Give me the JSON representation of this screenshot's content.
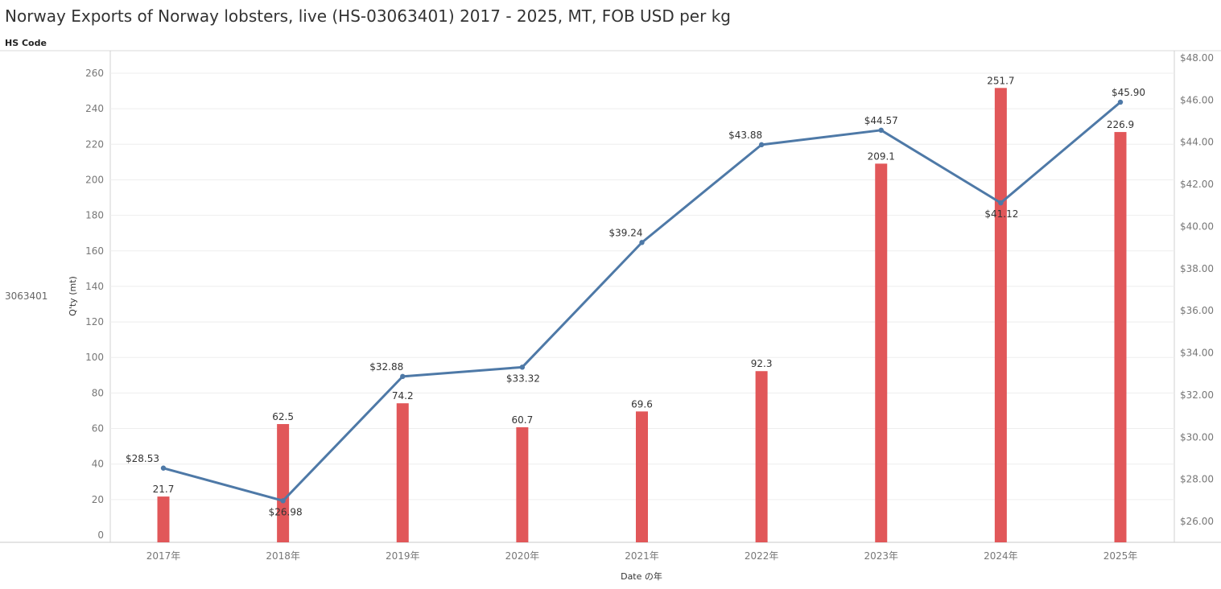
{
  "title": "Norway Exports of Norway lobsters, live (HS-03063401) 2017 - 2025, MT, FOB USD per kg",
  "row_header": "HS Code",
  "row_value": "3063401",
  "colors": {
    "bar": "#e15759",
    "line": "#4e79a7",
    "grid": "#eeeeee",
    "axis": "#d0d0d0"
  },
  "chart_data": {
    "type": "bar",
    "categories": [
      "2017年",
      "2018年",
      "2019年",
      "2020年",
      "2021年",
      "2022年",
      "2023年",
      "2024年",
      "2025年"
    ],
    "xlabel": "Date の年",
    "ylabel": "Q'ty (mt)",
    "ylim": [
      0,
      270
    ],
    "y_ticks": [
      0,
      20,
      40,
      60,
      80,
      100,
      120,
      140,
      160,
      180,
      200,
      220,
      240,
      260
    ],
    "y2lim": [
      25.2,
      48.0
    ],
    "y2_ticks": [
      26,
      28,
      30,
      32,
      34,
      36,
      38,
      40,
      42,
      44,
      46,
      48
    ],
    "y2_tick_prefix": "$",
    "grid": true,
    "series": [
      {
        "type": "bar",
        "axis": "left",
        "values": [
          21.7,
          62.5,
          74.2,
          60.7,
          69.6,
          92.3,
          209.1,
          251.7,
          226.9
        ],
        "labels": [
          "21.7",
          "62.5",
          "74.2",
          "60.7",
          "69.6",
          "92.3",
          "209.1",
          "251.7",
          "226.9"
        ]
      },
      {
        "type": "line",
        "axis": "right",
        "values": [
          28.53,
          26.98,
          32.88,
          33.32,
          39.24,
          43.88,
          44.57,
          41.12,
          45.9
        ],
        "labels": [
          "$28.53",
          "$26.98",
          "$32.88",
          "$33.32",
          "$39.24",
          "$43.88",
          "$44.57",
          "$41.12",
          "$45.90"
        ],
        "label_positions": [
          "above",
          "below",
          "above",
          "below",
          "above",
          "above",
          "above",
          "below",
          "above"
        ]
      }
    ]
  }
}
